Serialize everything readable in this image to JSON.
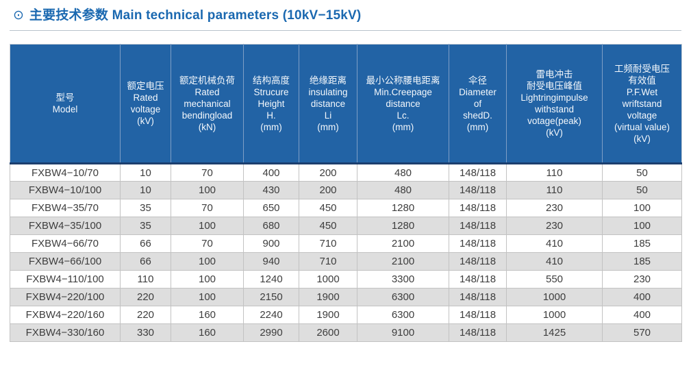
{
  "header": {
    "icon": "⊙",
    "title": "主要技术参数 Main technical parameters (10kV−15kV)"
  },
  "table": {
    "columns": [
      {
        "id": "model",
        "lines": [
          "型号",
          "Model"
        ]
      },
      {
        "id": "rated-voltage",
        "lines": [
          "额定电压",
          "Rated",
          "voltage",
          "(kV)"
        ]
      },
      {
        "id": "rated-mechanical-bending-load",
        "lines": [
          "额定机械负荷",
          "Rated",
          "mechanical",
          "bendingload",
          "(kN)"
        ]
      },
      {
        "id": "structure-height",
        "lines": [
          "结构高度",
          "Strucure",
          "Height",
          "H.",
          "(mm)"
        ]
      },
      {
        "id": "insulating-distance",
        "lines": [
          "绝缘距离",
          "insulating",
          "distance",
          "Li",
          "(mm)"
        ]
      },
      {
        "id": "min-creepage-distance",
        "lines": [
          "最小公称腰电距离",
          "Min.Creepage",
          "distance",
          "Lc.",
          "(mm)"
        ]
      },
      {
        "id": "shed-diameter",
        "lines": [
          "伞径",
          "Diameter",
          "of",
          "shedD.",
          "(mm)"
        ]
      },
      {
        "id": "lightning-impulse-withstand",
        "lines": [
          "雷电冲击",
          "耐受电压峰值",
          "Lightringimpulse",
          "withstand",
          "votage(peak)",
          "(kV)"
        ]
      },
      {
        "id": "power-frequency-wet-withstand",
        "lines": [
          "工频耐受电压",
          "有效值",
          "P.F.Wet",
          "wriftstand",
          "voltage",
          "(virtual value)",
          "(kV)"
        ]
      }
    ],
    "rows": [
      {
        "model": "FXBW4−10/70",
        "values": [
          "10",
          "70",
          "400",
          "200",
          "480",
          "148/118",
          "110",
          "50"
        ]
      },
      {
        "model": "FXBW4−10/100",
        "values": [
          "10",
          "100",
          "430",
          "200",
          "480",
          "148/118",
          "110",
          "50"
        ]
      },
      {
        "model": "FXBW4−35/70",
        "values": [
          "35",
          "70",
          "650",
          "450",
          "1280",
          "148/118",
          "230",
          "100"
        ]
      },
      {
        "model": "FXBW4−35/100",
        "values": [
          "35",
          "100",
          "680",
          "450",
          "1280",
          "148/118",
          "230",
          "100"
        ]
      },
      {
        "model": "FXBW4−66/70",
        "values": [
          "66",
          "70",
          "900",
          "710",
          "2100",
          "148/118",
          "410",
          "185"
        ]
      },
      {
        "model": "FXBW4−66/100",
        "values": [
          "66",
          "100",
          "940",
          "710",
          "2100",
          "148/118",
          "410",
          "185"
        ]
      },
      {
        "model": "FXBW4−110/100",
        "values": [
          "110",
          "100",
          "1240",
          "1000",
          "3300",
          "148/118",
          "550",
          "230"
        ]
      },
      {
        "model": "FXBW4−220/100",
        "values": [
          "220",
          "100",
          "2150",
          "1900",
          "6300",
          "148/118",
          "1000",
          "400"
        ]
      },
      {
        "model": "FXBW4−220/160",
        "values": [
          "220",
          "160",
          "2240",
          "1900",
          "6300",
          "148/118",
          "1000",
          "400"
        ]
      },
      {
        "model": "FXBW4−330/160",
        "values": [
          "330",
          "160",
          "2990",
          "2600",
          "9100",
          "148/118",
          "1425",
          "570"
        ]
      }
    ]
  },
  "colors": {
    "accent_blue": "#1a68b0",
    "header_bg": "#2263a5",
    "header_divider": "#1c3e6e",
    "header_separator": "#7f9fc6",
    "stripe_gray": "#dedede",
    "grid_gray": "#c2c2c2",
    "body_text": "#3d3d3d"
  }
}
